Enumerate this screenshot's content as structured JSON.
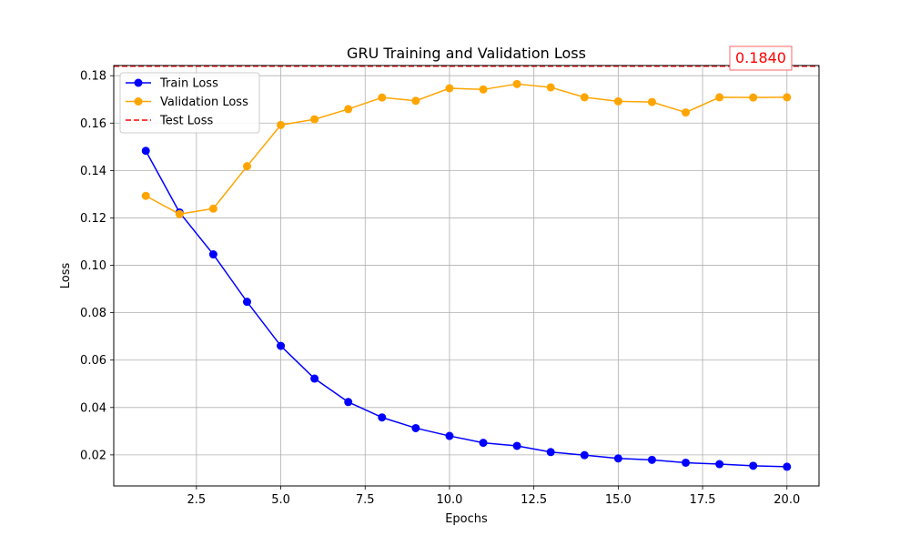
{
  "chart_data": {
    "type": "line",
    "title": "GRU Training and Validation Loss",
    "xlabel": "Epochs",
    "ylabel": "Loss",
    "xlim": [
      0.05,
      20.95
    ],
    "ylim": [
      0.0069,
      0.1843
    ],
    "grid": true,
    "legend_position": "top-left",
    "x": [
      1,
      2,
      3,
      4,
      5,
      6,
      7,
      8,
      9,
      10,
      11,
      12,
      13,
      14,
      15,
      16,
      17,
      18,
      19,
      20
    ],
    "x_ticks": [
      2.5,
      5.0,
      7.5,
      10.0,
      12.5,
      15.0,
      17.5,
      20.0
    ],
    "x_tick_labels": [
      "2.5",
      "5.0",
      "7.5",
      "10.0",
      "12.5",
      "15.0",
      "17.5",
      "20.0"
    ],
    "y_ticks": [
      0.02,
      0.04,
      0.06,
      0.08,
      0.1,
      0.12,
      0.14,
      0.16,
      0.18
    ],
    "y_tick_labels": [
      "0.02",
      "0.04",
      "0.06",
      "0.08",
      "0.10",
      "0.12",
      "0.14",
      "0.16",
      "0.18"
    ],
    "series": [
      {
        "name": "Train Loss",
        "color": "#0000ff",
        "marker": "circle",
        "values": [
          0.1483,
          0.1223,
          0.1046,
          0.0846,
          0.066,
          0.0522,
          0.0423,
          0.0358,
          0.0313,
          0.028,
          0.0251,
          0.0238,
          0.0212,
          0.0199,
          0.0185,
          0.0179,
          0.0167,
          0.0161,
          0.0154,
          0.015
        ]
      },
      {
        "name": "Validation Loss",
        "color": "#ffa500",
        "marker": "circle",
        "values": [
          0.1293,
          0.1216,
          0.1239,
          0.1418,
          0.1592,
          0.1616,
          0.1659,
          0.1708,
          0.1694,
          0.1747,
          0.1742,
          0.1765,
          0.1751,
          0.1709,
          0.1692,
          0.1689,
          0.1645,
          0.1709,
          0.1708,
          0.1709
        ]
      }
    ],
    "reference_lines": [
      {
        "name": "Test Loss",
        "color": "#ff0000",
        "style": "dashed",
        "value": 0.184
      }
    ],
    "annotations": [
      {
        "text": "0.1840",
        "color": "#ff0000"
      }
    ]
  }
}
